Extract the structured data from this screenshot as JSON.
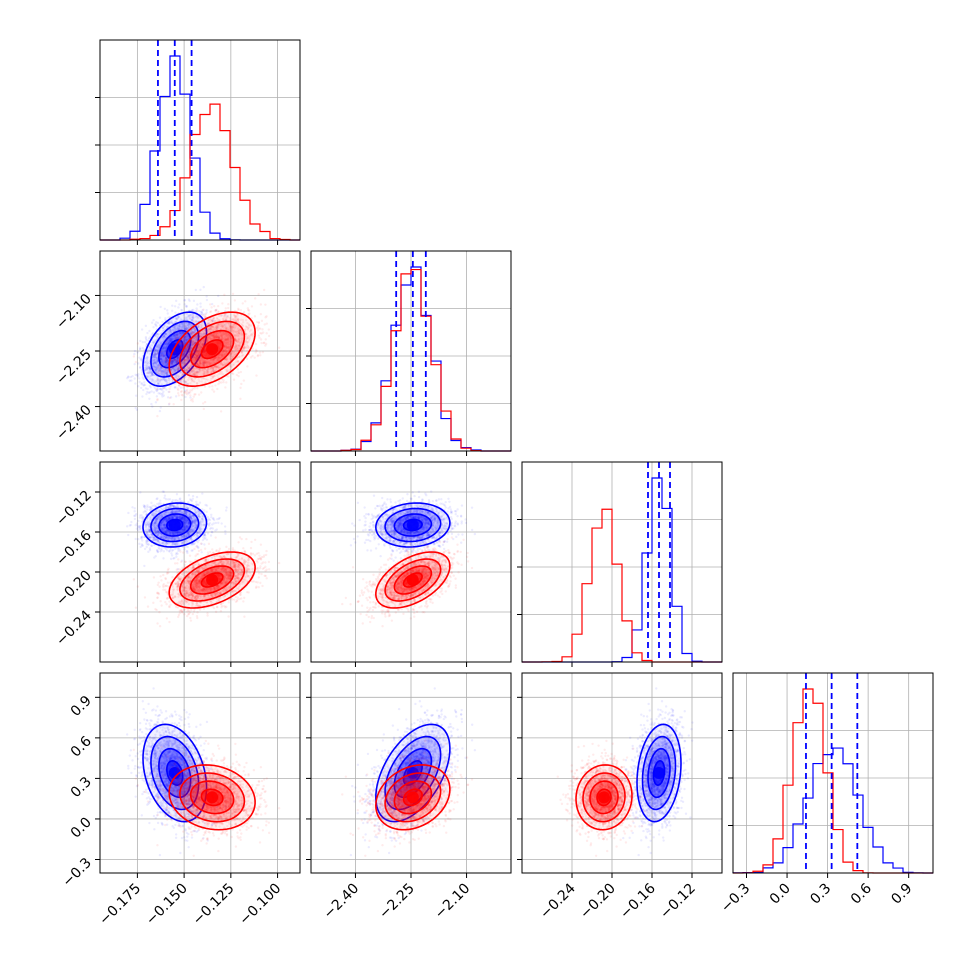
{
  "chart_data": {
    "type": "corner",
    "colors": {
      "series_a": "#0000ff",
      "series_b": "#ff0000",
      "grid": "#b0b0b0"
    },
    "params": [
      {
        "range": [
          -0.195,
          -0.088
        ],
        "ticks": [
          -0.175,
          -0.15,
          -0.125,
          -0.1
        ],
        "tick_labels": [
          "−0.175",
          "−0.150",
          "−0.125",
          "−0.100"
        ]
      },
      {
        "range": [
          -2.52,
          -1.98
        ],
        "ticks": [
          -2.4,
          -2.25,
          -2.1
        ],
        "tick_labels": [
          "−2.40",
          "−2.25",
          "−2.10"
        ]
      },
      {
        "range": [
          -0.29,
          -0.09
        ],
        "ticks": [
          -0.24,
          -0.2,
          -0.16,
          -0.12
        ],
        "tick_labels": [
          "−0.24",
          "−0.20",
          "−0.16",
          "−0.12"
        ]
      },
      {
        "range": [
          -0.4,
          1.08
        ],
        "ticks": [
          -0.3,
          0.0,
          0.3,
          0.6,
          0.9
        ],
        "tick_labels": [
          "−0.3",
          "0.0",
          "0.3",
          "0.6",
          "0.9"
        ]
      }
    ],
    "series": [
      {
        "color": "#0000ff",
        "mean": [
          -0.155,
          -2.245,
          -0.153,
          0.34
        ],
        "sd": [
          0.0085,
          0.05,
          0.011,
          0.18
        ],
        "quantiles": [
          [
            -0.164,
            -0.155,
            -0.146
          ],
          [
            -2.29,
            -2.245,
            -2.21
          ],
          [
            -0.164,
            -0.153,
            -0.142
          ],
          [
            0.14,
            0.33,
            0.52
          ]
        ],
        "corr": [
          [
            1,
            0.45,
            0.1,
            -0.3
          ],
          [
            0.45,
            1,
            0.1,
            0.5
          ],
          [
            0.1,
            0.1,
            1,
            0.2
          ],
          [
            -0.3,
            0.5,
            0.2,
            1
          ]
        ]
      },
      {
        "color": "#ff0000",
        "mean": [
          -0.135,
          -2.245,
          -0.208,
          0.16
        ],
        "sd": [
          0.0115,
          0.05,
          0.014,
          0.12
        ],
        "corr": [
          [
            1,
            0.45,
            0.45,
            -0.15
          ],
          [
            0.45,
            1,
            0.5,
            0.25
          ],
          [
            0.45,
            0.5,
            1,
            0.05
          ],
          [
            -0.15,
            0.25,
            0.05,
            1
          ]
        ]
      }
    ],
    "hist_bins": 20,
    "grid": true
  }
}
